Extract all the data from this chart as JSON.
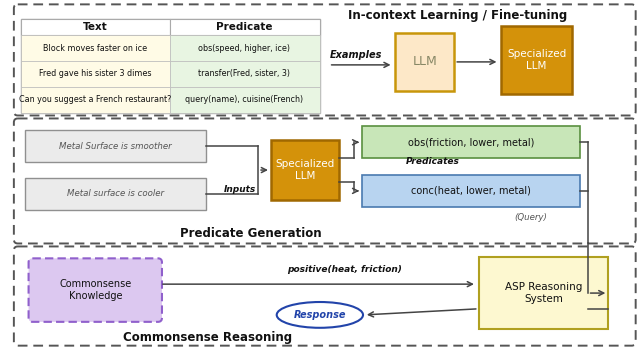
{
  "bg_color": "#ffffff",
  "section1_title": "In-context Learning / Fine-tuning",
  "section2_title": "Predicate Generation",
  "section3_title": "Commonsense Reasoning",
  "table_headers": [
    "Text",
    "Predicate"
  ],
  "table_rows": [
    [
      "Block moves faster on ice",
      "obs(speed, higher, ice)"
    ],
    [
      "Fred gave his sister 3 dimes",
      "transfer(Fred, sister, 3)"
    ],
    [
      "Can you suggest a French restaurant?",
      "query(name), cuisine(French)"
    ]
  ],
  "table_left_bg": "#fffbe6",
  "table_right_bg": "#e8f5e2",
  "table_header_bg": "#ffffff",
  "llm_fc": "#fde8c8",
  "llm_ec": "#c8960a",
  "sllm_fc": "#d4920a",
  "sllm_ec": "#a06800",
  "sllm_text": "#ffffff",
  "green_fc": "#c8e6b8",
  "green_ec": "#5a9040",
  "blue_fc": "#b8d4f0",
  "blue_ec": "#4a7ab0",
  "asp_fc": "#fdf8d0",
  "asp_ec": "#b0a020",
  "ck_fc": "#dcc8f0",
  "ck_ec": "#9060cc",
  "gray_fc": "#ebebeb",
  "gray_ec": "#909090",
  "dash_color": "#555555",
  "arr_color": "#444444",
  "text_color": "#111111",
  "resp_ec": "#2244aa",
  "resp_tc": "#2244aa"
}
